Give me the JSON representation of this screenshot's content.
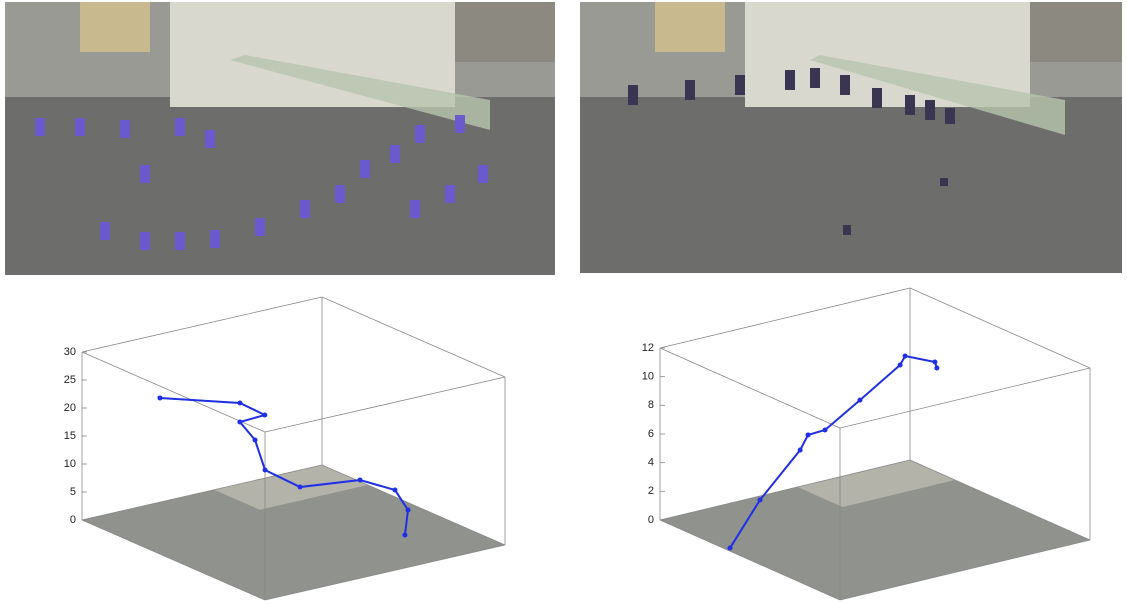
{
  "chart_data": [
    {
      "type": "trajectory3d",
      "xlim": [
        0,
        1
      ],
      "ylim": [
        0,
        1
      ],
      "zlim": [
        0,
        30
      ],
      "zticks": [
        0,
        5,
        10,
        15,
        20,
        25,
        30
      ],
      "series": [
        {
          "color": "#1f2fe6",
          "x": [
            0.156,
            0.302,
            0.355,
            0.32,
            0.358,
            0.393,
            0.415,
            0.516,
            0.572,
            0.668,
            0.73
          ],
          "y": [
            0.206,
            0.428,
            0.491,
            0.414,
            0.448,
            0.463,
            0.592,
            0.765,
            0.868,
            0.849,
            0.789
          ],
          "z": [
            22,
            21,
            19,
            18,
            15,
            10,
            6,
            7,
            5,
            3,
            0
          ]
        }
      ]
    },
    {
      "type": "trajectory3d",
      "xlim": [
        0,
        1
      ],
      "ylim": [
        0,
        1
      ],
      "zlim": [
        0,
        12
      ],
      "zticks": [
        0,
        2,
        4,
        6,
        8,
        10,
        12
      ],
      "series": [
        {
          "color": "#1f2fe6",
          "x": [
            0.364,
            0.265,
            0.287,
            0.296,
            0.289,
            0.347,
            0.431,
            0.484,
            0.533,
            0.527
          ],
          "y": [
            0.018,
            0.209,
            0.354,
            0.379,
            0.452,
            0.55,
            0.65,
            0.632,
            0.716,
            0.728
          ],
          "z": [
            0,
            2,
            5,
            6,
            6,
            8,
            10.5,
            11.5,
            11,
            10.5
          ]
        }
      ]
    }
  ]
}
